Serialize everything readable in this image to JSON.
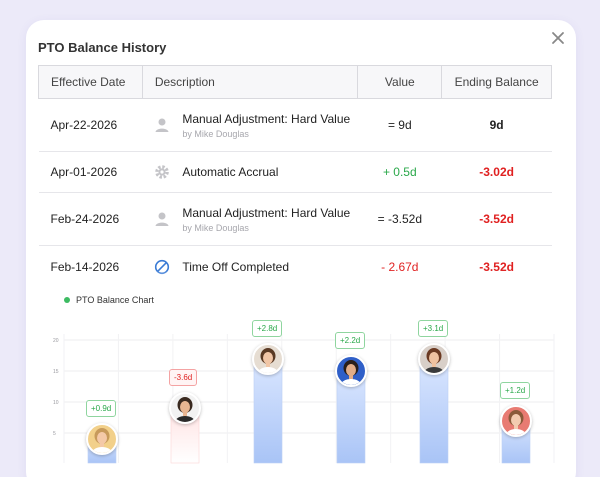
{
  "dialog": {
    "title": "PTO Balance History"
  },
  "table": {
    "headers": [
      "Effective Date",
      "Description",
      "Value",
      "Ending Balance"
    ],
    "rows": [
      {
        "date": "Apr-22-2026",
        "icon": "user-icon",
        "desc": "Manual Adjustment: Hard Value",
        "by": "by Mike Douglas",
        "value": "= 9d",
        "balance": "9d",
        "value_color": "#222222",
        "balance_color": "#222222"
      },
      {
        "date": "Apr-01-2026",
        "icon": "gear-icon",
        "desc": "Automatic Accrual",
        "by": "",
        "value": "+ 0.5d",
        "balance": "-3.02d",
        "value_color": "#2aa84a",
        "balance_color": "#e02020"
      },
      {
        "date": "Feb-24-2026",
        "icon": "user-icon",
        "desc": "Manual Adjustment: Hard Value",
        "by": "by Mike Douglas",
        "value": "= -3.52d",
        "balance": "-3.52d",
        "value_color": "#222222",
        "balance_color": "#e02020"
      },
      {
        "date": "Feb-14-2026",
        "icon": "block-icon",
        "desc": "Time Off Completed",
        "by": "",
        "value": "- 2.67d",
        "balance": "-3.52d",
        "value_color": "#e02020",
        "balance_color": "#e02020"
      }
    ]
  },
  "chart": {
    "title": "PTO Balance Chart",
    "y_ticks": [
      "20",
      "15",
      "10",
      "5"
    ],
    "ylim": [
      0,
      20
    ]
  },
  "chart_data": {
    "type": "bar",
    "title": "PTO Balance Chart",
    "ylim": [
      0,
      20
    ],
    "series": [
      {
        "values": [
          4.5,
          9.5,
          17.5,
          15.5,
          17.5,
          7.5
        ]
      }
    ],
    "labels": [
      "+0.9d",
      "-3.6d",
      "+2.8d",
      "+2.2d",
      "+3.1d",
      "+1.2d"
    ],
    "label_types": [
      "pos",
      "neg",
      "pos",
      "pos",
      "pos",
      "pos"
    ]
  },
  "avatars": [
    {
      "skin": "#f4c9a8",
      "hair": "#c79a5b",
      "bg": "#f2d08a",
      "shirt": "#ffffff"
    },
    {
      "skin": "#e8b692",
      "hair": "#3a2a20",
      "bg": "#f2f2f2",
      "shirt": "#2a2a2a"
    },
    {
      "skin": "#f1c6a6",
      "hair": "#5a3a24",
      "bg": "#e6ddd2",
      "shirt": "#ffffff"
    },
    {
      "skin": "#e2ad88",
      "hair": "#2a1f1a",
      "bg": "#2f5fc8",
      "shirt": "#ffffff"
    },
    {
      "skin": "#efc2a0",
      "hair": "#6b3a22",
      "bg": "#d8cfc8",
      "shirt": "#3a3a3a"
    },
    {
      "skin": "#f3cbb0",
      "hair": "#8a5a3a",
      "bg": "#e87b72",
      "shirt": "#ffffff"
    }
  ]
}
